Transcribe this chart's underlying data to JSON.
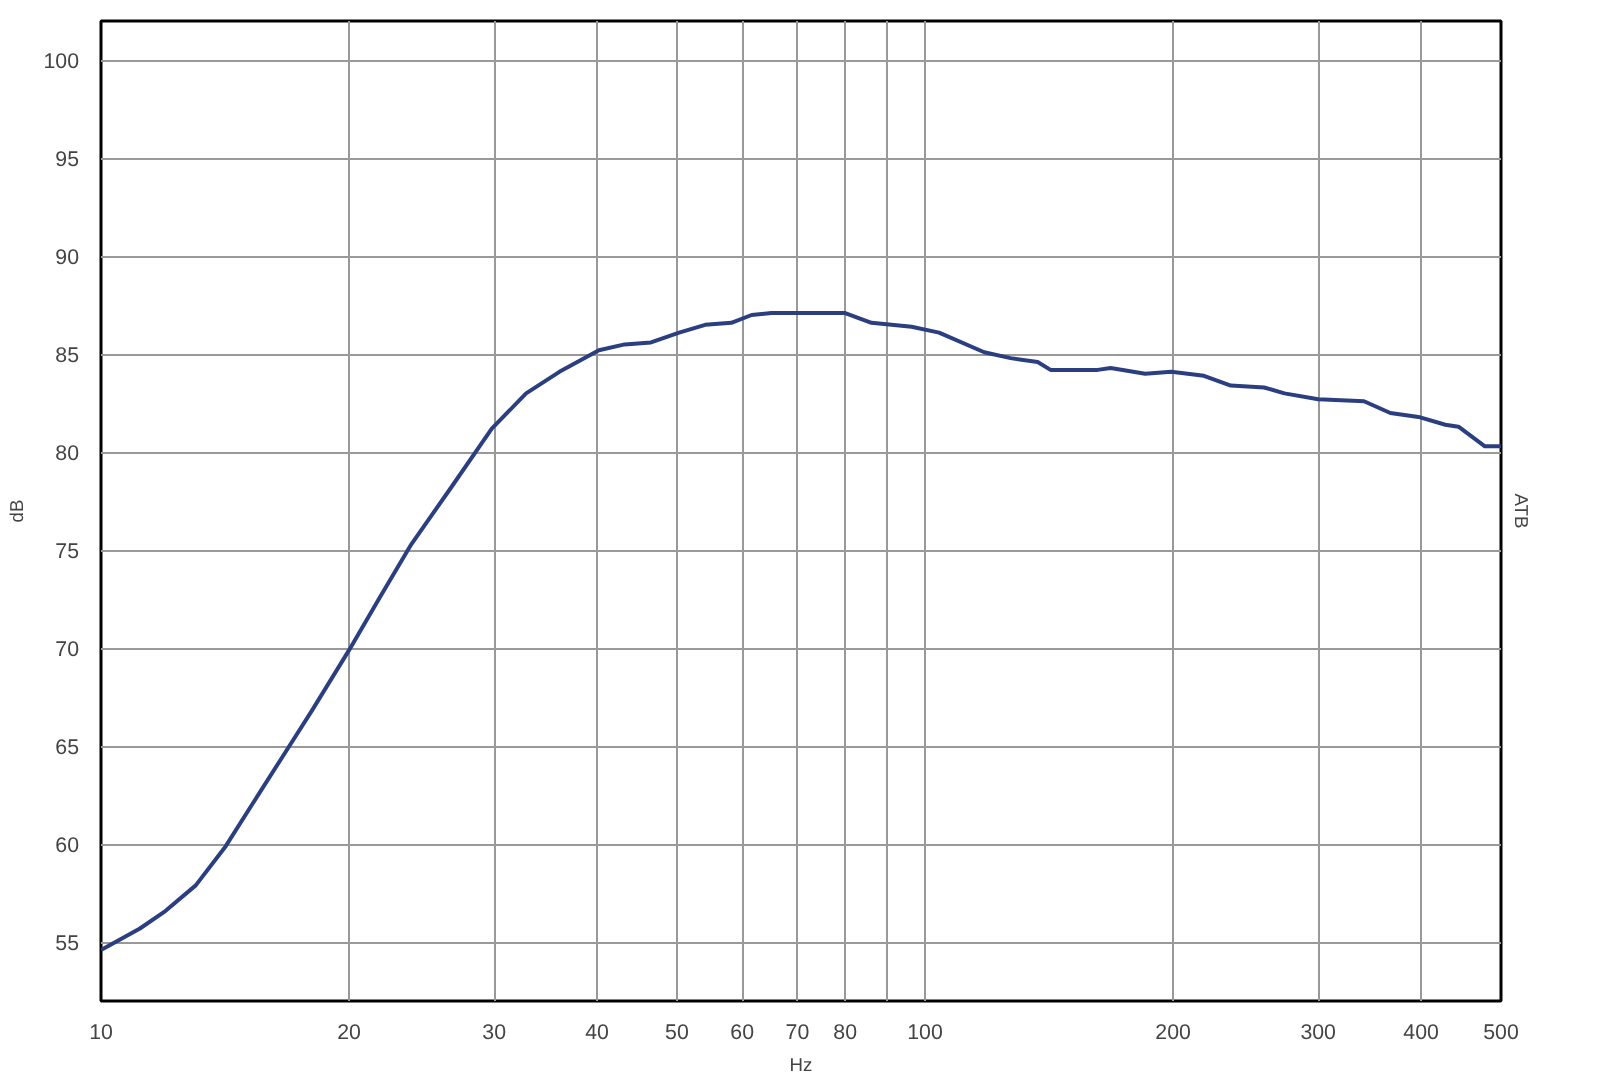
{
  "chart_data": {
    "type": "line",
    "xlabel": "Hz",
    "ylabel": "dB",
    "y2label": "ATB",
    "log": "x",
    "grid": true,
    "line_style": "solid",
    "xlim": [
      10,
      500
    ],
    "ylim": [
      52,
      102
    ],
    "xticks": [
      10,
      20,
      30,
      40,
      50,
      60,
      70,
      80,
      {
        "value": 90,
        "label": null
      },
      100,
      200,
      300,
      400,
      500
    ],
    "yticks": [
      55,
      60,
      65,
      70,
      75,
      80,
      85,
      90,
      95,
      100
    ],
    "series": [
      {
        "color": "#2b3f80",
        "x": [
          10,
          11.15,
          11.98,
          13.03,
          14.17,
          15.24,
          16.57,
          18.02,
          20.0,
          21.8,
          23.8,
          26.6,
          29.8,
          32.8,
          36.0,
          40.2,
          43.2,
          46.5,
          50.3,
          54.1,
          58.2,
          61.6,
          65.1,
          80.0,
          86.1,
          96.3,
          104,
          118,
          127,
          137,
          142,
          162,
          168,
          185,
          199,
          218,
          235,
          258,
          273,
          300,
          341,
          367,
          397,
          428,
          444,
          478,
          500
        ],
        "values": [
          54.6,
          55.7,
          56.6,
          57.9,
          59.9,
          62.0,
          64.4,
          66.8,
          69.9,
          72.6,
          75.3,
          78.2,
          81.2,
          83.0,
          84.1,
          85.2,
          85.5,
          85.6,
          86.1,
          86.5,
          86.6,
          87.0,
          87.1,
          87.1,
          86.6,
          86.4,
          86.1,
          85.1,
          84.8,
          84.6,
          84.2,
          84.2,
          84.3,
          84.0,
          84.1,
          83.9,
          83.4,
          83.3,
          83.0,
          82.7,
          82.6,
          82.0,
          81.8,
          81.4,
          81.3,
          80.3,
          80.3
        ]
      }
    ]
  }
}
